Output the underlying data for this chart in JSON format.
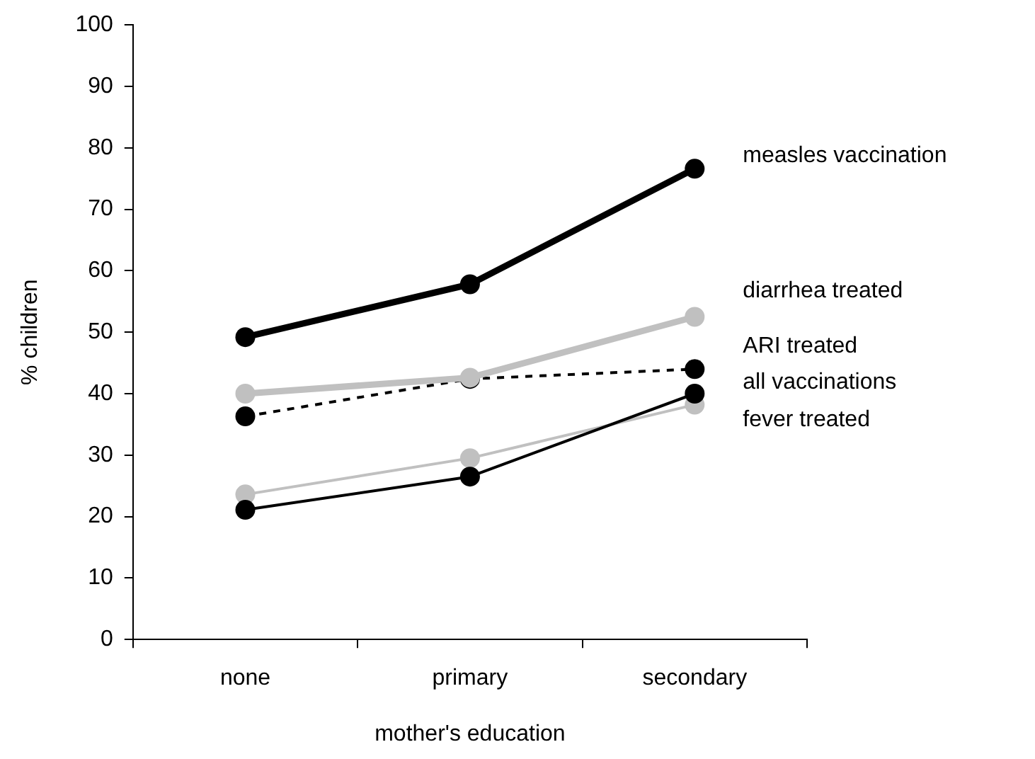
{
  "chart_data": {
    "type": "line",
    "xlabel": "mother's education",
    "ylabel": "% children",
    "categories": [
      "none",
      "primary",
      "secondary"
    ],
    "series": [
      {
        "name": "measles vaccination",
        "color": "#000000",
        "values": [
          49.2,
          57.8,
          76.6
        ]
      },
      {
        "name": "diarrhea treated",
        "color": "#c0c0c0",
        "values": [
          40.0,
          42.6,
          52.5
        ]
      },
      {
        "name": "ARI treated",
        "color": "#000000",
        "line_style": "dashed",
        "values": [
          36.3,
          42.4,
          44.0
        ]
      },
      {
        "name": "all vaccinations",
        "color": "#000000",
        "values": [
          21.1,
          26.5,
          40.0
        ]
      },
      {
        "name": "fever treated",
        "color": "#c0c0c0",
        "values": [
          23.6,
          29.5,
          38.2
        ]
      }
    ],
    "ylim": [
      0,
      100
    ],
    "yticks": [
      0,
      10,
      20,
      30,
      40,
      50,
      60,
      70,
      80,
      90,
      100
    ],
    "grid": false,
    "legend": false,
    "marker": "circle",
    "line_style": "solid"
  }
}
